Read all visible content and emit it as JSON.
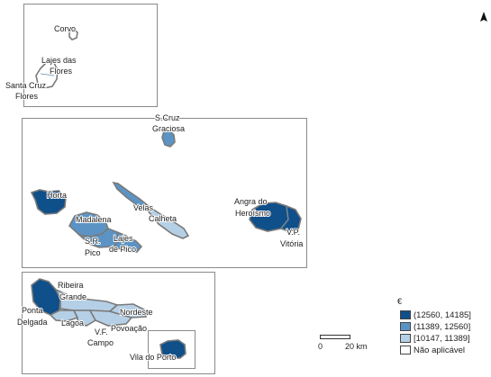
{
  "map": {
    "colors": {
      "class_high": "#0f4f8a",
      "class_mid": "#5b94c4",
      "class_low": "#b5d0e6",
      "not_applicable": "#ffffff"
    },
    "labels": {
      "corvo": "Corvo",
      "lajes_flores_1": "Lajes das",
      "lajes_flores_2": "Flores",
      "santa_cruz_flores_1": "Santa Cruz",
      "santa_cruz_flores_2": "Flores",
      "santa_cruz_graciosa_1": "S.Cruz",
      "santa_cruz_graciosa_2": "Graciosa",
      "horta": "Horta",
      "velas": "Velas",
      "calheta": "Calheta",
      "madalena": "Madalena",
      "sao_roque_1": "S.R.",
      "sao_roque_2": "Pico",
      "lajes_pico_1": "Lajes",
      "lajes_pico_2": "de Pico",
      "angra_1": "Angra do",
      "angra_2": "Heroísmo",
      "praia_1": "V.P.",
      "praia_2": "Vitória",
      "ribeira_grande_1": "Ribeira",
      "ribeira_grande_2": "Grande",
      "ponta_delgada_1": "Ponta",
      "ponta_delgada_2": "Delgada",
      "lagoa": "Lagoa",
      "nordeste": "Nordeste",
      "povoacao": "Povoação",
      "vila_franca_1": "V.F.",
      "vila_franca_2": "Campo",
      "vila_do_porto": "Vila do Porto"
    }
  },
  "legend": {
    "title": "€",
    "items": [
      {
        "label": "(12560, 14185]",
        "color": "#0f4f8a"
      },
      {
        "label": "(11389, 12560]",
        "color": "#5b94c4"
      },
      {
        "label": "[10147, 11389]",
        "color": "#b5d0e6"
      },
      {
        "label": "Não aplicável",
        "color": "#ffffff"
      }
    ]
  },
  "scalebar": {
    "label_start": "0",
    "label_end": "20 km"
  },
  "north_arrow": {
    "icon": "north-arrow-icon"
  }
}
